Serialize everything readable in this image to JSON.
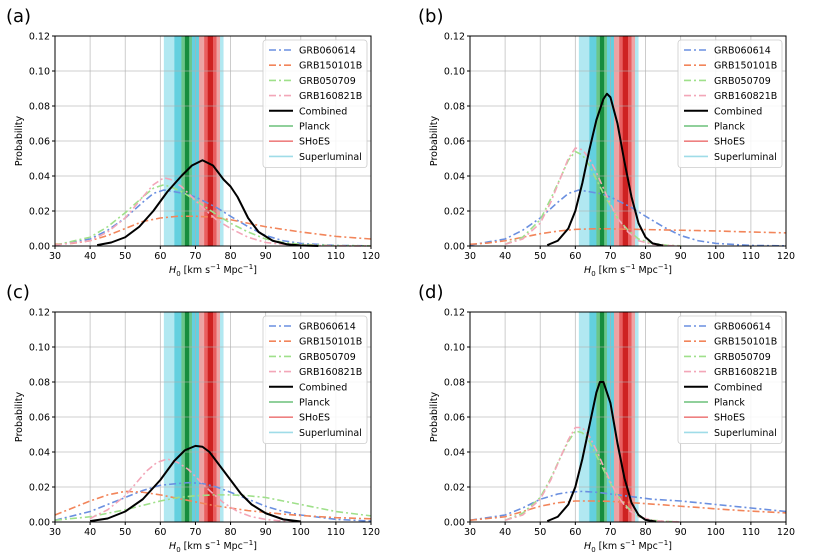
{
  "figure": {
    "shared": {
      "xlabel_main": "H",
      "xlabel_sub": "0",
      "xlabel_units_pre": " [km s",
      "xlabel_units_exp1": "−1",
      "xlabel_units_mid": " Mpc",
      "xlabel_units_exp2": "−1",
      "xlabel_units_post": "]",
      "ylabel": "Probability",
      "xticks": [
        30,
        40,
        50,
        60,
        70,
        80,
        90,
        100,
        110,
        120
      ],
      "yticks": [
        "0.00",
        "0.02",
        "0.04",
        "0.06",
        "0.08",
        "0.10",
        "0.12"
      ],
      "xlim": [
        30,
        120
      ],
      "ylim": [
        0,
        0.12
      ],
      "legend": [
        {
          "label": "GRB060614",
          "color": "#6a8fe0",
          "style": "dashdot"
        },
        {
          "label": "GRB150101B",
          "color": "#f2855a",
          "style": "dashdot"
        },
        {
          "label": "GRB050709",
          "color": "#9fe08a",
          "style": "dashdot"
        },
        {
          "label": "GRB160821B",
          "color": "#f3a6b8",
          "style": "dashdot"
        },
        {
          "label": "Combined",
          "color": "#000000",
          "style": "solid"
        },
        {
          "label": "Planck",
          "color": "#6cc07a",
          "style": "solid"
        },
        {
          "label": "SHoES",
          "color": "#ee8080",
          "style": "solid"
        },
        {
          "label": "Superluminal",
          "color": "#9fdce8",
          "style": "solid"
        }
      ],
      "bands": [
        {
          "name": "Superluminal",
          "lo": 61.0,
          "hi": 78.0,
          "color": "#a8e6ef"
        },
        {
          "name": "Superluminal-core",
          "lo": 64.0,
          "hi": 72.0,
          "color": "#5fcfdd"
        },
        {
          "name": "SHoES-outer",
          "lo": 71.0,
          "hi": 77.0,
          "color": "#f2a0a0"
        },
        {
          "name": "SHoES-mid",
          "lo": 72.5,
          "hi": 76.0,
          "color": "#e85c5c"
        },
        {
          "name": "SHoES-core",
          "lo": 73.5,
          "hi": 75.0,
          "color": "#cc1e1e"
        },
        {
          "name": "Planck-outer",
          "lo": 66.0,
          "hi": 69.0,
          "color": "#6cc585"
        },
        {
          "name": "Planck-core",
          "lo": 67.0,
          "hi": 68.2,
          "color": "#128a3a"
        }
      ]
    },
    "chart_data": [
      {
        "panel": "(a)",
        "type": "line",
        "xlim": [
          30,
          120
        ],
        "ylim": [
          0,
          0.12
        ],
        "series": [
          {
            "name": "GRB060614",
            "x": [
              30,
              40,
              45,
              50,
              55,
              58,
              61,
              64,
              67,
              70,
              73,
              76,
              80,
              85,
              90,
              95,
              100,
              110,
              120
            ],
            "y": [
              0.0005,
              0.004,
              0.009,
              0.016,
              0.025,
              0.03,
              0.032,
              0.031,
              0.03,
              0.028,
              0.025,
              0.022,
              0.017,
              0.011,
              0.006,
              0.003,
              0.0015,
              0.0003,
              0.0001
            ]
          },
          {
            "name": "GRB150101B",
            "x": [
              30,
              35,
              40,
              45,
              50,
              55,
              60,
              65,
              70,
              75,
              80,
              85,
              90,
              95,
              100,
              110,
              120
            ],
            "y": [
              0.001,
              0.0015,
              0.003,
              0.006,
              0.01,
              0.014,
              0.016,
              0.017,
              0.017,
              0.0165,
              0.015,
              0.013,
              0.011,
              0.0095,
              0.008,
              0.0055,
              0.004
            ]
          },
          {
            "name": "GRB050709",
            "x": [
              30,
              40,
              45,
              50,
              55,
              58,
              61,
              64,
              67,
              70,
              73,
              76,
              80,
              85,
              90,
              95,
              100,
              110,
              120
            ],
            "y": [
              0.0005,
              0.005,
              0.011,
              0.019,
              0.028,
              0.033,
              0.035,
              0.033,
              0.03,
              0.026,
              0.022,
              0.018,
              0.013,
              0.008,
              0.004,
              0.002,
              0.001,
              0.0002,
              0.0001
            ]
          },
          {
            "name": "GRB160821B",
            "x": [
              30,
              40,
              45,
              50,
              55,
              58,
              61,
              63,
              66,
              69,
              72,
              76,
              80,
              85,
              90,
              95,
              100,
              110,
              120
            ],
            "y": [
              0.0005,
              0.003,
              0.008,
              0.016,
              0.028,
              0.035,
              0.039,
              0.038,
              0.034,
              0.028,
              0.022,
              0.015,
              0.01,
              0.005,
              0.002,
              0.001,
              0.0005,
              0.0001,
              0.0
            ]
          },
          {
            "name": "Combined",
            "x": [
              42,
              46,
              50,
              54,
              58,
              62,
              66,
              69,
              72,
              75,
              78,
              80,
              82,
              85,
              88,
              92,
              96,
              100,
              105
            ],
            "y": [
              0.0005,
              0.002,
              0.005,
              0.011,
              0.02,
              0.031,
              0.04,
              0.046,
              0.049,
              0.046,
              0.038,
              0.034,
              0.028,
              0.016,
              0.008,
              0.003,
              0.001,
              0.0003,
              0.0
            ]
          }
        ]
      },
      {
        "panel": "(b)",
        "type": "line",
        "xlim": [
          30,
          120
        ],
        "ylim": [
          0,
          0.12
        ],
        "series": [
          {
            "name": "GRB060614",
            "x": [
              30,
              40,
              45,
              50,
              55,
              58,
              61,
              64,
              67,
              70,
              73,
              76,
              80,
              85,
              90,
              95,
              100,
              110,
              120
            ],
            "y": [
              0.0005,
              0.004,
              0.009,
              0.016,
              0.025,
              0.03,
              0.032,
              0.031,
              0.03,
              0.028,
              0.025,
              0.022,
              0.017,
              0.011,
              0.006,
              0.003,
              0.0015,
              0.0003,
              0.0001
            ]
          },
          {
            "name": "GRB150101B",
            "x": [
              30,
              35,
              40,
              45,
              50,
              55,
              60,
              65,
              70,
              75,
              80,
              85,
              90,
              95,
              100,
              110,
              120
            ],
            "y": [
              0.001,
              0.0017,
              0.003,
              0.005,
              0.007,
              0.0085,
              0.0095,
              0.0098,
              0.0098,
              0.0096,
              0.0094,
              0.0092,
              0.009,
              0.0088,
              0.0086,
              0.008,
              0.0075
            ]
          },
          {
            "name": "GRB050709",
            "x": [
              40,
              45,
              50,
              53,
              56,
              58,
              60,
              62,
              64,
              66,
              68,
              70,
              72,
              75,
              78,
              82,
              86,
              90
            ],
            "y": [
              0.001,
              0.005,
              0.015,
              0.027,
              0.04,
              0.049,
              0.054,
              0.052,
              0.046,
              0.038,
              0.03,
              0.023,
              0.016,
              0.009,
              0.004,
              0.0015,
              0.0005,
              0.0001
            ]
          },
          {
            "name": "GRB160821B",
            "x": [
              40,
              45,
              50,
              53,
              56,
              58,
              60,
              62,
              64,
              66,
              68,
              70,
              72,
              75,
              78,
              82,
              86,
              90
            ],
            "y": [
              0.001,
              0.004,
              0.013,
              0.025,
              0.04,
              0.05,
              0.056,
              0.055,
              0.05,
              0.042,
              0.033,
              0.024,
              0.016,
              0.008,
              0.003,
              0.001,
              0.0003,
              0.0
            ]
          },
          {
            "name": "Combined",
            "x": [
              52,
              55,
              58,
              60,
              62,
              64,
              66,
              68,
              69,
              70,
              72,
              74,
              76,
              78,
              80,
              82,
              85
            ],
            "y": [
              0.0005,
              0.003,
              0.01,
              0.02,
              0.036,
              0.055,
              0.072,
              0.084,
              0.087,
              0.085,
              0.07,
              0.048,
              0.028,
              0.013,
              0.005,
              0.0015,
              0.0002
            ]
          }
        ]
      },
      {
        "panel": "(c)",
        "type": "line",
        "xlim": [
          30,
          120
        ],
        "ylim": [
          0,
          0.12
        ],
        "series": [
          {
            "name": "GRB060614",
            "x": [
              30,
              40,
              50,
              55,
              60,
              65,
              68,
              72,
              76,
              80,
              85,
              90,
              95,
              100,
              110,
              120
            ],
            "y": [
              0.001,
              0.006,
              0.014,
              0.018,
              0.021,
              0.022,
              0.0225,
              0.022,
              0.02,
              0.017,
              0.013,
              0.009,
              0.006,
              0.004,
              0.0015,
              0.0005
            ]
          },
          {
            "name": "GRB150101B",
            "x": [
              30,
              35,
              40,
              45,
              50,
              55,
              60,
              65,
              70,
              75,
              80,
              85,
              90,
              95,
              100,
              110,
              120
            ],
            "y": [
              0.004,
              0.008,
              0.012,
              0.0155,
              0.0175,
              0.017,
              0.0155,
              0.0135,
              0.0115,
              0.0095,
              0.008,
              0.0065,
              0.0055,
              0.0045,
              0.0037,
              0.0025,
              0.0018
            ]
          },
          {
            "name": "GRB050709",
            "x": [
              30,
              40,
              50,
              60,
              65,
              70,
              75,
              80,
              85,
              90,
              95,
              100,
              110,
              120
            ],
            "y": [
              0.001,
              0.003,
              0.007,
              0.012,
              0.014,
              0.015,
              0.0155,
              0.0155,
              0.015,
              0.014,
              0.012,
              0.01,
              0.006,
              0.0035
            ]
          },
          {
            "name": "GRB160821B",
            "x": [
              40,
              45,
              50,
              53,
              56,
              59,
              62,
              65,
              68,
              71,
              74,
              78,
              82,
              86,
              90,
              95,
              100
            ],
            "y": [
              0.002,
              0.007,
              0.015,
              0.022,
              0.029,
              0.034,
              0.036,
              0.034,
              0.03,
              0.024,
              0.018,
              0.011,
              0.006,
              0.003,
              0.0015,
              0.0005,
              0.0001
            ]
          },
          {
            "name": "Combined",
            "x": [
              40,
              45,
              50,
              55,
              60,
              64,
              67,
              70,
              72,
              74,
              77,
              80,
              83,
              86,
              90,
              95,
              100
            ],
            "y": [
              0.0005,
              0.002,
              0.006,
              0.013,
              0.024,
              0.035,
              0.041,
              0.0435,
              0.043,
              0.04,
              0.032,
              0.024,
              0.016,
              0.01,
              0.005,
              0.0015,
              0.0003
            ]
          }
        ]
      },
      {
        "panel": "(d)",
        "type": "line",
        "xlim": [
          30,
          120
        ],
        "ylim": [
          0,
          0.12
        ],
        "series": [
          {
            "name": "GRB060614",
            "x": [
              30,
              40,
              45,
              50,
              55,
              58,
              62,
              66,
              70,
              74,
              78,
              82,
              86,
              90,
              95,
              100,
              110,
              120
            ],
            "y": [
              0.001,
              0.004,
              0.008,
              0.013,
              0.016,
              0.017,
              0.0175,
              0.017,
              0.016,
              0.015,
              0.014,
              0.013,
              0.0125,
              0.012,
              0.011,
              0.01,
              0.008,
              0.006
            ]
          },
          {
            "name": "GRB150101B",
            "x": [
              30,
              40,
              45,
              50,
              55,
              60,
              65,
              70,
              75,
              80,
              85,
              90,
              95,
              100,
              110,
              120
            ],
            "y": [
              0.001,
              0.003,
              0.006,
              0.009,
              0.011,
              0.012,
              0.012,
              0.0118,
              0.0112,
              0.0105,
              0.0098,
              0.009,
              0.0083,
              0.0075,
              0.0062,
              0.0052
            ]
          },
          {
            "name": "GRB050709",
            "x": [
              40,
              45,
              50,
              53,
              56,
              58,
              60,
              62,
              64,
              66,
              68,
              70,
              72,
              75,
              78,
              82,
              86,
              90
            ],
            "y": [
              0.001,
              0.005,
              0.014,
              0.025,
              0.038,
              0.046,
              0.052,
              0.051,
              0.046,
              0.038,
              0.03,
              0.022,
              0.015,
              0.008,
              0.003,
              0.001,
              0.0003,
              0.0001
            ]
          },
          {
            "name": "GRB160821B",
            "x": [
              40,
              45,
              50,
              53,
              56,
              58,
              60,
              62,
              64,
              66,
              68,
              70,
              72,
              75,
              78,
              82,
              86,
              90
            ],
            "y": [
              0.001,
              0.004,
              0.013,
              0.024,
              0.038,
              0.047,
              0.054,
              0.054,
              0.049,
              0.041,
              0.032,
              0.023,
              0.015,
              0.007,
              0.003,
              0.001,
              0.0003,
              0.0
            ]
          },
          {
            "name": "Combined",
            "x": [
              52,
              55,
              58,
              60,
              62,
              64,
              66,
              67,
              68,
              70,
              72,
              74,
              76,
              78,
              80,
              83
            ],
            "y": [
              0.0005,
              0.003,
              0.01,
              0.02,
              0.036,
              0.055,
              0.074,
              0.08,
              0.08,
              0.068,
              0.045,
              0.025,
              0.011,
              0.004,
              0.0012,
              0.0002
            ]
          }
        ]
      }
    ]
  }
}
